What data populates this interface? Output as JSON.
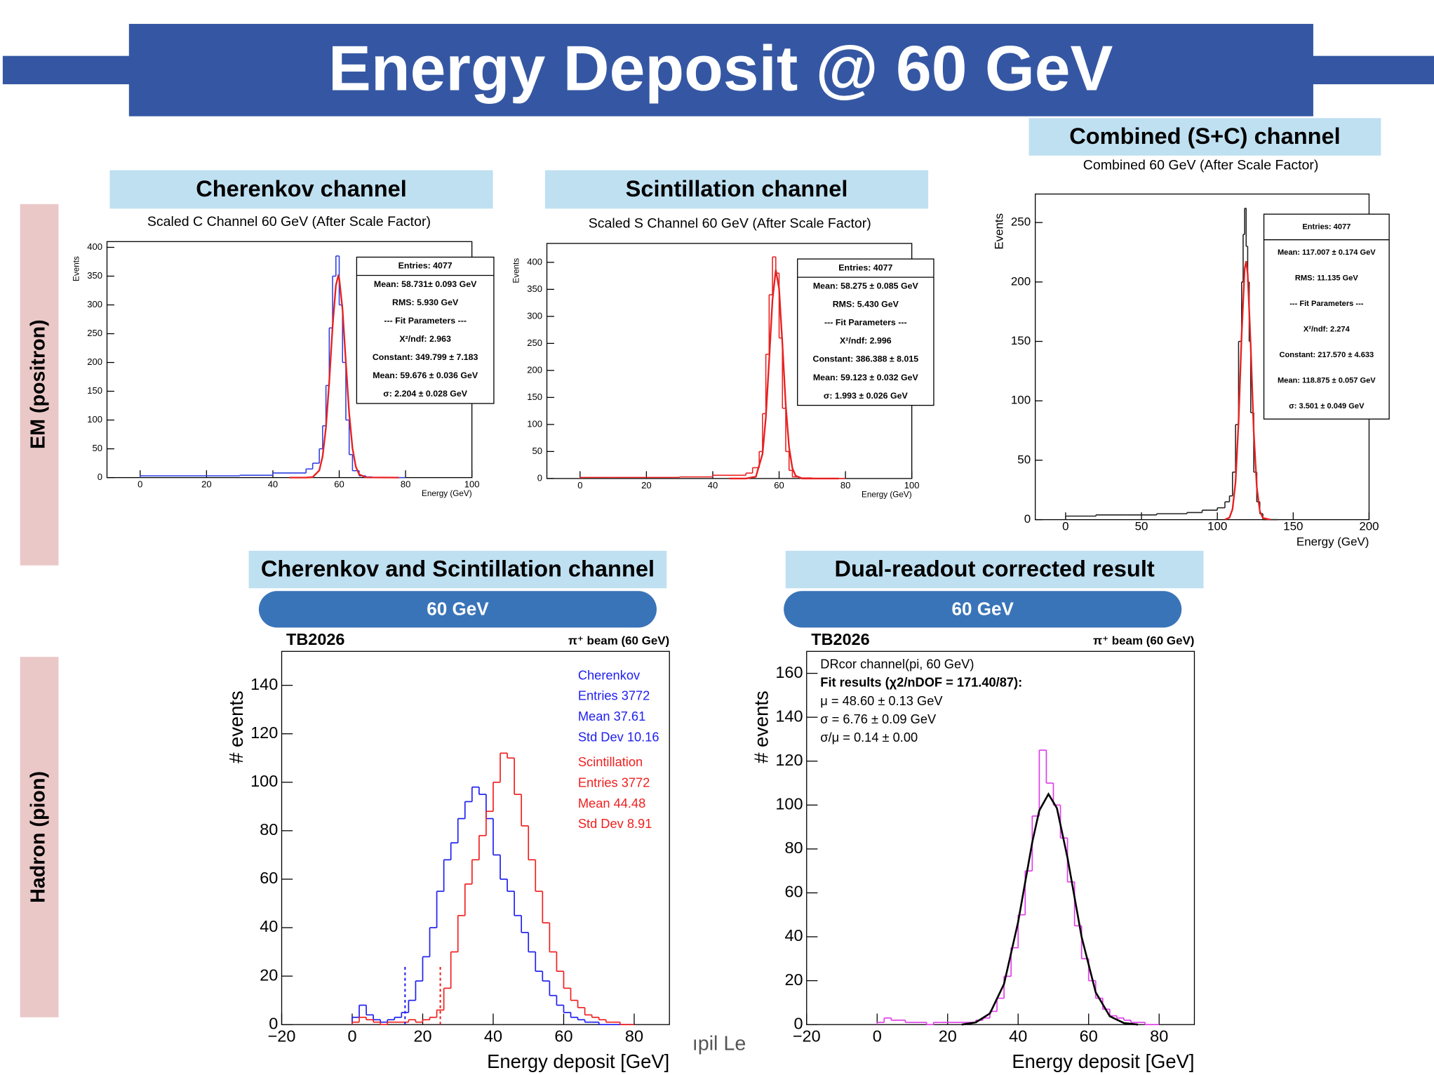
{
  "header": {
    "title": "Energy Deposit @ 60 GeV"
  },
  "sections": [
    "EM (positron)",
    "Hadron (pion)"
  ],
  "footer": "ıpil Le",
  "chart_data": [
    {
      "type": "histogram",
      "title": "Cherenkov channel",
      "subtitle": "Scaled C Channel 60 GeV (After Scale Factor)",
      "x_label": "Energy (GeV)",
      "y_label": "Events",
      "xlim": [
        -10,
        100
      ],
      "xticks": [
        0,
        20,
        40,
        60,
        80,
        100
      ],
      "ylim": [
        0,
        410
      ],
      "yticks": [
        0,
        50,
        100,
        150,
        200,
        250,
        300,
        350,
        400
      ],
      "stats": [
        "Entries: 4077",
        "Mean: 58.731± 0.093 GeV",
        "RMS: 5.930 GeV",
        "--- Fit Parameters ---",
        "X²/ndf: 2.963",
        "Constant: 349.799 ± 7.183",
        "Mean: 59.676 ± 0.036 GeV",
        "σ: 2.204 ± 0.028 GeV"
      ],
      "series": [
        {
          "color": "#2f3fe0",
          "bins": [
            0,
            10,
            20,
            30,
            40,
            50,
            52,
            54,
            55,
            56,
            57,
            58,
            59,
            60,
            61,
            62,
            63,
            64,
            66,
            68,
            70,
            80
          ],
          "values": [
            3,
            3,
            3,
            4,
            8,
            15,
            25,
            50,
            90,
            160,
            260,
            350,
            385,
            300,
            200,
            100,
            40,
            12,
            3,
            1,
            0
          ]
        }
      ],
      "fit": {
        "color": "#e82020",
        "x": [
          45,
          50,
          52,
          54,
          55,
          56,
          57,
          58,
          59,
          59.7,
          60,
          61,
          62,
          63,
          64,
          65,
          66,
          68,
          78
        ],
        "values": [
          0,
          0.02,
          0.8,
          12.6,
          36.8,
          87,
          167,
          262,
          334,
          350,
          346,
          292,
          201,
          112,
          51,
          19,
          5.7,
          0.3,
          0
        ]
      }
    },
    {
      "type": "histogram",
      "title": "Scintillation channel",
      "subtitle": "Scaled S Channel 60 GeV (After Scale Factor)",
      "x_label": "Energy (GeV)",
      "y_label": "Events",
      "xlim": [
        -10,
        100
      ],
      "xticks": [
        0,
        20,
        40,
        60,
        80,
        100
      ],
      "ylim": [
        0,
        435
      ],
      "yticks": [
        0,
        50,
        100,
        150,
        200,
        250,
        300,
        350,
        400
      ],
      "stats": [
        "Entries: 4077",
        "Mean: 58.275 ± 0.085 GeV",
        "RMS: 5.430 GeV",
        "--- Fit Parameters ---",
        "X²/ndf: 2.996",
        "Constant: 386.388 ± 8.015",
        "Mean: 59.123 ± 0.032 GeV",
        "σ: 1.993 ± 0.026 GeV"
      ],
      "series": [
        {
          "color": "#e82020",
          "bins": [
            0,
            10,
            20,
            30,
            40,
            50,
            52,
            54,
            55,
            56,
            57,
            58,
            59,
            60,
            61,
            62,
            63,
            64,
            66,
            70,
            80
          ],
          "values": [
            2,
            2,
            2,
            3,
            6,
            10,
            20,
            50,
            120,
            230,
            340,
            410,
            380,
            260,
            130,
            50,
            15,
            3,
            1,
            0
          ]
        }
      ],
      "fit": {
        "color": "#e82020",
        "x": [
          45,
          50,
          53,
          55,
          56,
          57,
          58,
          59,
          60,
          61,
          62,
          63,
          64,
          65,
          67,
          78
        ],
        "values": [
          0,
          0,
          3.4,
          45.5,
          113,
          219,
          330,
          386,
          351,
          248,
          136,
          58,
          19,
          5,
          0,
          0
        ]
      }
    },
    {
      "type": "histogram",
      "title": "Combined (S+C) channel",
      "subtitle": "Combined 60 GeV (After Scale Factor)",
      "x_label": "Energy (GeV)",
      "y_label": "Events",
      "xlim": [
        -20,
        200
      ],
      "xticks": [
        0,
        50,
        100,
        150,
        200
      ],
      "ylim": [
        0,
        274
      ],
      "yticks": [
        0,
        50,
        100,
        150,
        200,
        250
      ],
      "stats": [
        "Entries: 4077",
        "Mean: 117.007 ± 0.174 GeV",
        "RMS: 11.135 GeV",
        "--- Fit Parameters ---",
        "X²/ndf: 2.274",
        "Constant: 217.570 ± 4.633",
        "Mean: 118.875 ± 0.057 GeV",
        "σ: 3.501 ± 0.049 GeV"
      ],
      "series": [
        {
          "color": "#222222",
          "bins": [
            0,
            20,
            40,
            60,
            80,
            90,
            100,
            105,
            108,
            110,
            112,
            114,
            116,
            117,
            118,
            119,
            120,
            121,
            122,
            124,
            126,
            128,
            130,
            140
          ],
          "values": [
            3,
            4,
            4,
            5,
            6,
            8,
            10,
            15,
            20,
            40,
            80,
            150,
            200,
            240,
            262,
            230,
            200,
            150,
            90,
            40,
            15,
            5,
            0
          ]
        }
      ],
      "fit": {
        "color": "#e82020",
        "x": [
          105,
          108,
          110,
          112,
          114,
          116,
          118,
          119,
          120,
          122,
          124,
          126,
          128,
          130,
          135
        ],
        "values": [
          0.08,
          1.7,
          8.8,
          31.6,
          82.5,
          155,
          211,
          217.5,
          206.7,
          146,
          74,
          27.4,
          7.3,
          1.4,
          0
        ]
      }
    },
    {
      "type": "histogram",
      "title": "Cherenkov and Scintillation channel",
      "badge": "60 GeV",
      "header_left": "TB2026",
      "header_right": "π⁺ beam (60 GeV)",
      "x_label": "Energy deposit [GeV]",
      "y_label": "# events",
      "xlim": [
        -20,
        90
      ],
      "xticks": [
        {
          "value": -20,
          "label": "−20"
        },
        0,
        20,
        40,
        60,
        80
      ],
      "ylim": [
        0,
        154
      ],
      "yticks": [
        0,
        20,
        40,
        60,
        80,
        100,
        120,
        140
      ],
      "series": [
        {
          "name": "Cherenkov",
          "color": "#2020f0",
          "stats": [
            "Entries  3772",
            "Mean     37.61",
            "Std Dev  10.16"
          ],
          "bins": [
            0,
            2,
            4,
            6,
            8,
            10,
            12,
            14,
            16,
            18,
            20,
            22,
            24,
            26,
            28,
            30,
            32,
            34,
            36,
            38,
            40,
            42,
            44,
            46,
            48,
            50,
            52,
            54,
            56,
            58,
            60,
            62,
            64,
            66,
            68,
            70,
            72,
            74,
            76,
            78,
            80
          ],
          "values": [
            3,
            8,
            4,
            2,
            1,
            2,
            3,
            5,
            10,
            18,
            28,
            40,
            55,
            68,
            75,
            85,
            92,
            98,
            95,
            85,
            70,
            60,
            55,
            45,
            38,
            30,
            22,
            18,
            12,
            8,
            5,
            3,
            2,
            1,
            1,
            0,
            0,
            0,
            0,
            0
          ]
        },
        {
          "name": "Scintillation",
          "color": "#f02020",
          "stats": [
            "Entries  3772",
            "Mean     44.48",
            "Std Dev  8.91"
          ],
          "bins": [
            0,
            2,
            4,
            6,
            8,
            10,
            12,
            14,
            16,
            18,
            20,
            22,
            24,
            26,
            28,
            30,
            32,
            34,
            36,
            38,
            40,
            42,
            44,
            46,
            48,
            50,
            52,
            54,
            56,
            58,
            60,
            62,
            64,
            66,
            68,
            70,
            72,
            74,
            76,
            78,
            80
          ],
          "values": [
            1,
            3,
            2,
            1,
            0,
            1,
            1,
            1,
            2,
            1,
            2,
            3,
            6,
            15,
            30,
            45,
            58,
            68,
            78,
            88,
            100,
            112,
            110,
            95,
            82,
            68,
            55,
            42,
            30,
            22,
            15,
            10,
            7,
            4,
            3,
            2,
            1,
            1,
            0,
            0
          ]
        }
      ],
      "vlines": [
        {
          "x": 15,
          "y": 24,
          "color": "#2020f0"
        },
        {
          "x": 25,
          "y": 24,
          "color": "#f02020"
        }
      ]
    },
    {
      "type": "histogram",
      "title": "Dual-readout corrected result",
      "badge": "60 GeV",
      "header_left": "TB2026",
      "header_right": "π⁺ beam (60 GeV)",
      "x_label": "Energy deposit [GeV]",
      "y_label": "# events",
      "xlim": [
        -20,
        90
      ],
      "xticks": [
        {
          "value": -20,
          "label": "−20"
        },
        0,
        20,
        40,
        60,
        80
      ],
      "ylim": [
        0,
        170
      ],
      "yticks": [
        0,
        20,
        40,
        60,
        80,
        100,
        120,
        140,
        160
      ],
      "annotation": [
        "DRcor channel(pi, 60 GeV)",
        "Fit results (χ2/nDOF = 171.40/87):",
        "μ = 48.60 ± 0.13 GeV",
        "σ = 6.76 ± 0.09 GeV",
        "σ/μ = 0.14 ± 0.00"
      ],
      "series": [
        {
          "color": "#e040e8",
          "bins": [
            0,
            2,
            4,
            6,
            8,
            10,
            12,
            14,
            16,
            18,
            20,
            22,
            24,
            26,
            28,
            30,
            32,
            34,
            36,
            38,
            40,
            42,
            44,
            46,
            48,
            50,
            52,
            54,
            56,
            58,
            60,
            62,
            64,
            66,
            68,
            70,
            72,
            74,
            76,
            78,
            80
          ],
          "values": [
            1,
            3,
            2,
            2,
            1,
            1,
            1,
            0,
            1,
            1,
            1,
            1,
            1,
            1,
            2,
            3,
            6,
            12,
            22,
            35,
            50,
            70,
            95,
            125,
            110,
            100,
            85,
            65,
            45,
            30,
            20,
            12,
            7,
            4,
            3,
            2,
            1,
            1,
            0,
            0
          ]
        }
      ],
      "fit": {
        "color": "#000000",
        "x": [
          24,
          28,
          32,
          36,
          40,
          44,
          46,
          48.6,
          51,
          54,
          58,
          62,
          66,
          70,
          74
        ],
        "values": [
          0,
          1,
          5.1,
          18.5,
          46.7,
          83,
          97.5,
          105,
          98.6,
          76,
          40,
          14.7,
          3.8,
          0.7,
          0
        ]
      }
    }
  ]
}
